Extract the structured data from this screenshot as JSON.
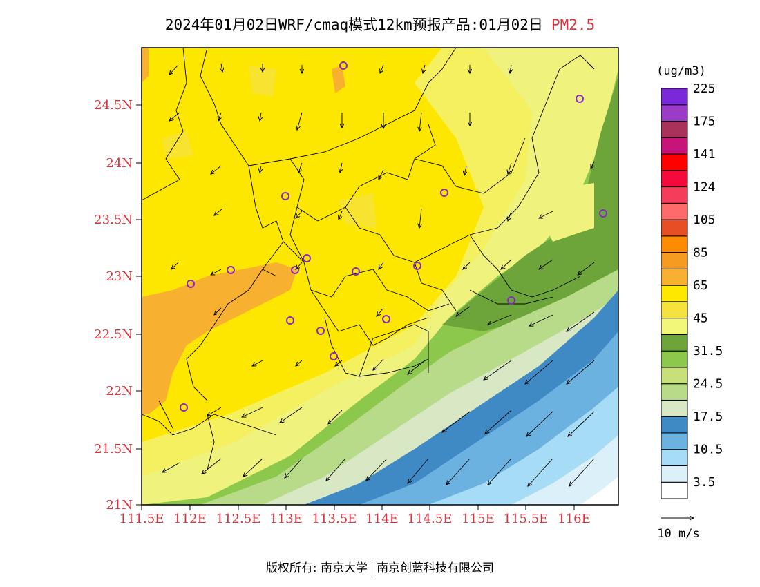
{
  "title": {
    "main": "2024年01月02日WRF/cmaq模式12km预报产品:01月02日",
    "pollutant": "PM2.5"
  },
  "legend": {
    "unit": "(ug/m3)",
    "colors": [
      "#ffffff",
      "#dcf0fa",
      "#a6dcf5",
      "#6cb2e0",
      "#3f8ac5",
      "#d8e8c4",
      "#b8db8a",
      "#c8e07a",
      "#8cc84b",
      "#6ea53a",
      "#f2f77a",
      "#f5e23c",
      "#ffe800",
      "#f7b030",
      "#f59b20",
      "#ff8c00",
      "#e84e26",
      "#ff6a6a",
      "#f53c5a",
      "#f50a3c",
      "#ff0000",
      "#c8147a",
      "#a8325a",
      "#9a3cc8",
      "#7a28d8"
    ],
    "labels": [
      "3.5",
      "10.5",
      "17.5",
      "24.5",
      "31.5",
      "45",
      "65",
      "85",
      "105",
      "124",
      "141",
      "175",
      "225"
    ]
  },
  "axes": {
    "x_ticks": [
      "111.5E",
      "112E",
      "112.5E",
      "113E",
      "113.5E",
      "114E",
      "114.5E",
      "115E",
      "115.5E",
      "116E"
    ],
    "y_ticks": [
      "24.5N",
      "24N",
      "23.5N",
      "23N",
      "22.5N",
      "22N",
      "21.5N",
      "21N"
    ]
  },
  "wind_scale": {
    "label": "10 m/s"
  },
  "footer": {
    "left": "版权所有: 南京大学",
    "right": "南京创蓝科技有限公司"
  }
}
